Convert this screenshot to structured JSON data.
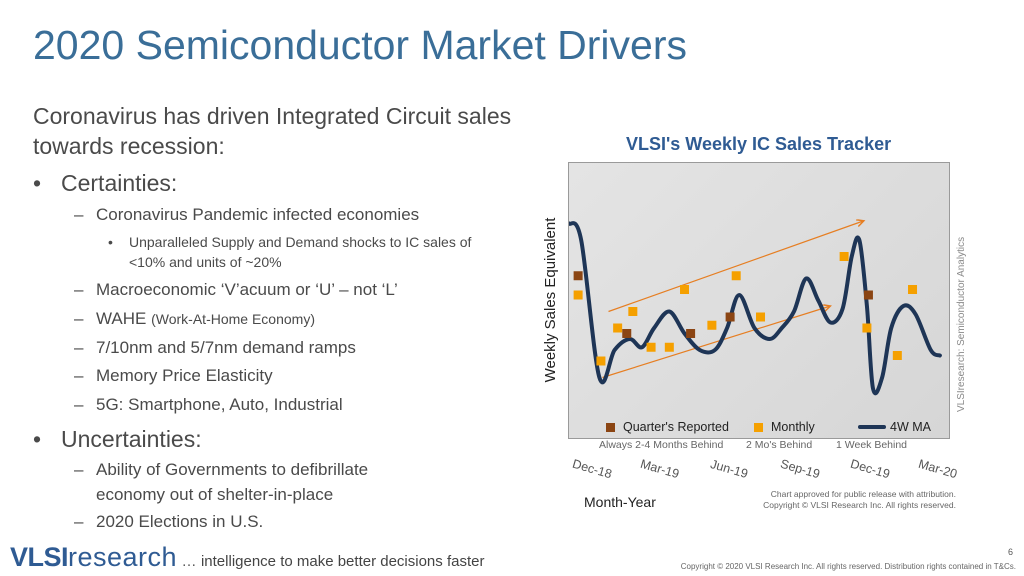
{
  "slide": {
    "title": "2020 Semiconductor Market Drivers",
    "intro": "Coronavirus has driven Integrated Circuit sales towards recession:",
    "certainties": {
      "bullet": "•",
      "heading": "Certainties:",
      "items": [
        {
          "dash": "–",
          "text": "Coronavirus Pandemic infected economies"
        },
        {
          "dash": "–",
          "text": "Macroeconomic ‘V’acuum or ‘U’ – not ‘L’"
        },
        {
          "dash": "–",
          "text": "WAHE",
          "note": "(Work-At-Home Economy)"
        },
        {
          "dash": "–",
          "text": "7/10nm and 5/7nm demand ramps"
        },
        {
          "dash": "–",
          "text": "Memory Price Elasticity"
        },
        {
          "dash": "–",
          "text": "5G: Smartphone, Auto, Industrial"
        }
      ],
      "sub_bullet": "•",
      "sub_item": "Unparalleled Supply and Demand shocks to IC sales of <10% and units of ~20%"
    },
    "uncertainties": {
      "bullet": "•",
      "heading": "Uncertainties:",
      "items": [
        {
          "dash": "–",
          "text": "Ability of Governments to defibrillate"
        },
        {
          "dash": "",
          "text": "economy out of shelter-in-place"
        },
        {
          "dash": "–",
          "text": "2020 Elections in U.S."
        }
      ]
    }
  },
  "chart_data": {
    "type": "line",
    "title": "VLSI's Weekly IC Sales Tracker",
    "ylabel": "Weekly Sales Equivalent",
    "xlabel": "Month-Year",
    "x_ticks": [
      "Dec-18",
      "Mar-19",
      "Jun-19",
      "Sep-19",
      "Dec-19",
      "Mar-20"
    ],
    "ylim": [
      0,
      100
    ],
    "legend": [
      {
        "name": "Quarter's Reported",
        "color": "#8b4513",
        "sub": "Always 2-4 Months Behind"
      },
      {
        "name": "Monthly",
        "color": "#f5a000",
        "sub": "2 Mo's Behind"
      },
      {
        "name": "4W MA",
        "color": "#1e3556",
        "sub": "1 Week Behind"
      }
    ],
    "series": [
      {
        "name": "4W MA",
        "color": "#1e3556",
        "points": [
          [
            0,
            78
          ],
          [
            0.4,
            72
          ],
          [
            1.0,
            22
          ],
          [
            1.5,
            32
          ],
          [
            2.0,
            36
          ],
          [
            2.4,
            33
          ],
          [
            2.8,
            40
          ],
          [
            3.3,
            46
          ],
          [
            3.8,
            38
          ],
          [
            4.3,
            32
          ],
          [
            4.8,
            32
          ],
          [
            5.2,
            40
          ],
          [
            5.6,
            52
          ],
          [
            6.1,
            40
          ],
          [
            6.6,
            36
          ],
          [
            7.0,
            40
          ],
          [
            7.4,
            46
          ],
          [
            7.8,
            58
          ],
          [
            8.2,
            50
          ],
          [
            8.6,
            42
          ],
          [
            9.0,
            47
          ],
          [
            9.3,
            66
          ],
          [
            9.55,
            72
          ],
          [
            9.8,
            48
          ],
          [
            10.0,
            18
          ],
          [
            10.3,
            22
          ],
          [
            10.6,
            40
          ],
          [
            11.0,
            48
          ],
          [
            11.4,
            45
          ],
          [
            11.9,
            32
          ],
          [
            12.2,
            30
          ]
        ]
      },
      {
        "name": "Monthly",
        "color": "#f5a000",
        "points": [
          [
            0.3,
            52
          ],
          [
            1.05,
            28
          ],
          [
            1.6,
            40
          ],
          [
            2.1,
            46
          ],
          [
            2.7,
            33
          ],
          [
            3.3,
            33
          ],
          [
            3.8,
            54
          ],
          [
            4.7,
            41
          ],
          [
            5.5,
            59
          ],
          [
            6.3,
            44
          ],
          [
            9.05,
            66
          ],
          [
            9.8,
            40
          ],
          [
            10.8,
            30
          ],
          [
            11.3,
            54
          ]
        ]
      },
      {
        "name": "Quarter's Reported",
        "color": "#8b4513",
        "points": [
          [
            0.3,
            59
          ],
          [
            1.9,
            38
          ],
          [
            4.0,
            38
          ],
          [
            5.3,
            44
          ],
          [
            9.85,
            52
          ]
        ]
      }
    ],
    "trend_lines": [
      {
        "color": "#e67e22",
        "from": [
          1.3,
          46
        ],
        "to": [
          9.7,
          79
        ]
      },
      {
        "color": "#e67e22",
        "from": [
          1.1,
          22
        ],
        "to": [
          8.6,
          48
        ]
      }
    ],
    "credit": "VLSIresearch: Semiconductor Analytics",
    "approval": "Chart approved for public release with attribution. Copyright © VLSI Research Inc. All rights reserved."
  },
  "footer": {
    "logo_bold": "VLSI",
    "logo_light": "research",
    "ellipsis": "…",
    "tagline": "intelligence to make better decisions faster",
    "page_number": "6",
    "copyright": "Copyright © 2020 VLSI Research Inc. All rights reserved. Distribution rights contained in T&Cs."
  }
}
